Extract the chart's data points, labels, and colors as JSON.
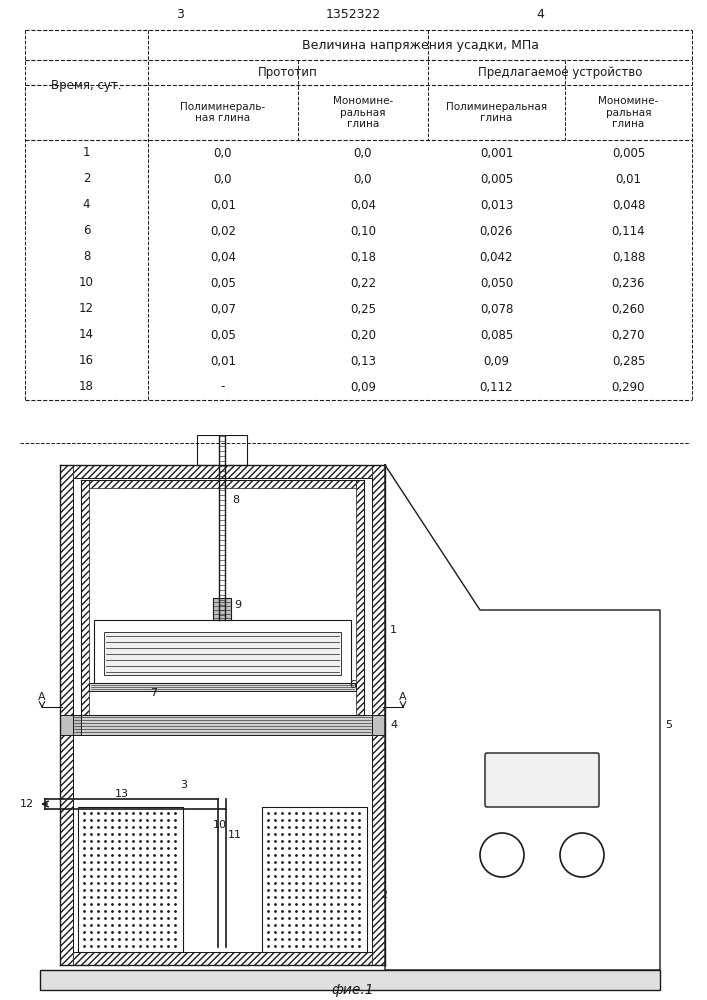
{
  "page_number_left": "3",
  "page_number_center": "1352322",
  "page_number_right": "4",
  "table_header_main": "Величина напряжения усадки, МПа",
  "col_header_1": "Время, сут.",
  "col_header_2a": "Прототип",
  "col_header_2b": "Предлагаемое устройство",
  "col_header_3a": "Полиминераль-\nная глина",
  "col_header_3b": "Мономине-\nральная\nглина",
  "col_header_3c": "Полиминеральная\nглина",
  "col_header_3d": "Мономине-\nральная\nглина",
  "table_data": [
    [
      "1",
      "0,0",
      "0,0",
      "0,001",
      "0,005"
    ],
    [
      "2",
      "0,0",
      "0,0",
      "0,005",
      "0,01"
    ],
    [
      "4",
      "0,01",
      "0,04",
      "0,013",
      "0,048"
    ],
    [
      "6",
      "0,02",
      "0,10",
      "0,026",
      "0,114"
    ],
    [
      "8",
      "0,04",
      "0,18",
      "0,042",
      "0,188"
    ],
    [
      "10",
      "0,05",
      "0,22",
      "0,050",
      "0,236"
    ],
    [
      "12",
      "0,07",
      "0,25",
      "0,078",
      "0,260"
    ],
    [
      "14",
      "0,05",
      "0,20",
      "0,085",
      "0,270"
    ],
    [
      "16",
      "0,01",
      "0,13",
      "0,09",
      "0,285"
    ],
    [
      "18",
      "-",
      "0,09",
      "0,112",
      "0,290"
    ]
  ],
  "fig_caption": "фие.1",
  "bg_color": "#ffffff",
  "text_color": "#1a1a1a",
  "line_color": "#1a1a1a"
}
